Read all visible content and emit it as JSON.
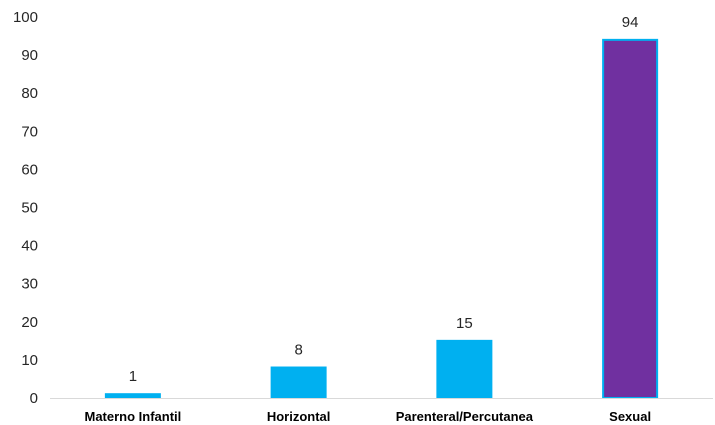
{
  "chart_data": {
    "type": "bar",
    "categories": [
      "Materno Infantil",
      "Horizontal",
      "Parenteral/Percutanea",
      "Sexual"
    ],
    "values": [
      1,
      8,
      15,
      94
    ],
    "value_labels": [
      "1",
      "8",
      "15",
      "94"
    ],
    "ylim": [
      0,
      100
    ],
    "yticks": [
      "0",
      "10",
      "20",
      "30",
      "40",
      "50",
      "60",
      "70",
      "80",
      "90",
      "100"
    ],
    "grid": false,
    "bar_colors": [
      "#00B0F0",
      "#00B0F0",
      "#00B0F0",
      "#7030A0"
    ],
    "bar_border_colors": [
      "#00B0F0",
      "#00B0F0",
      "#00B0F0",
      "#00B0F0"
    ]
  }
}
